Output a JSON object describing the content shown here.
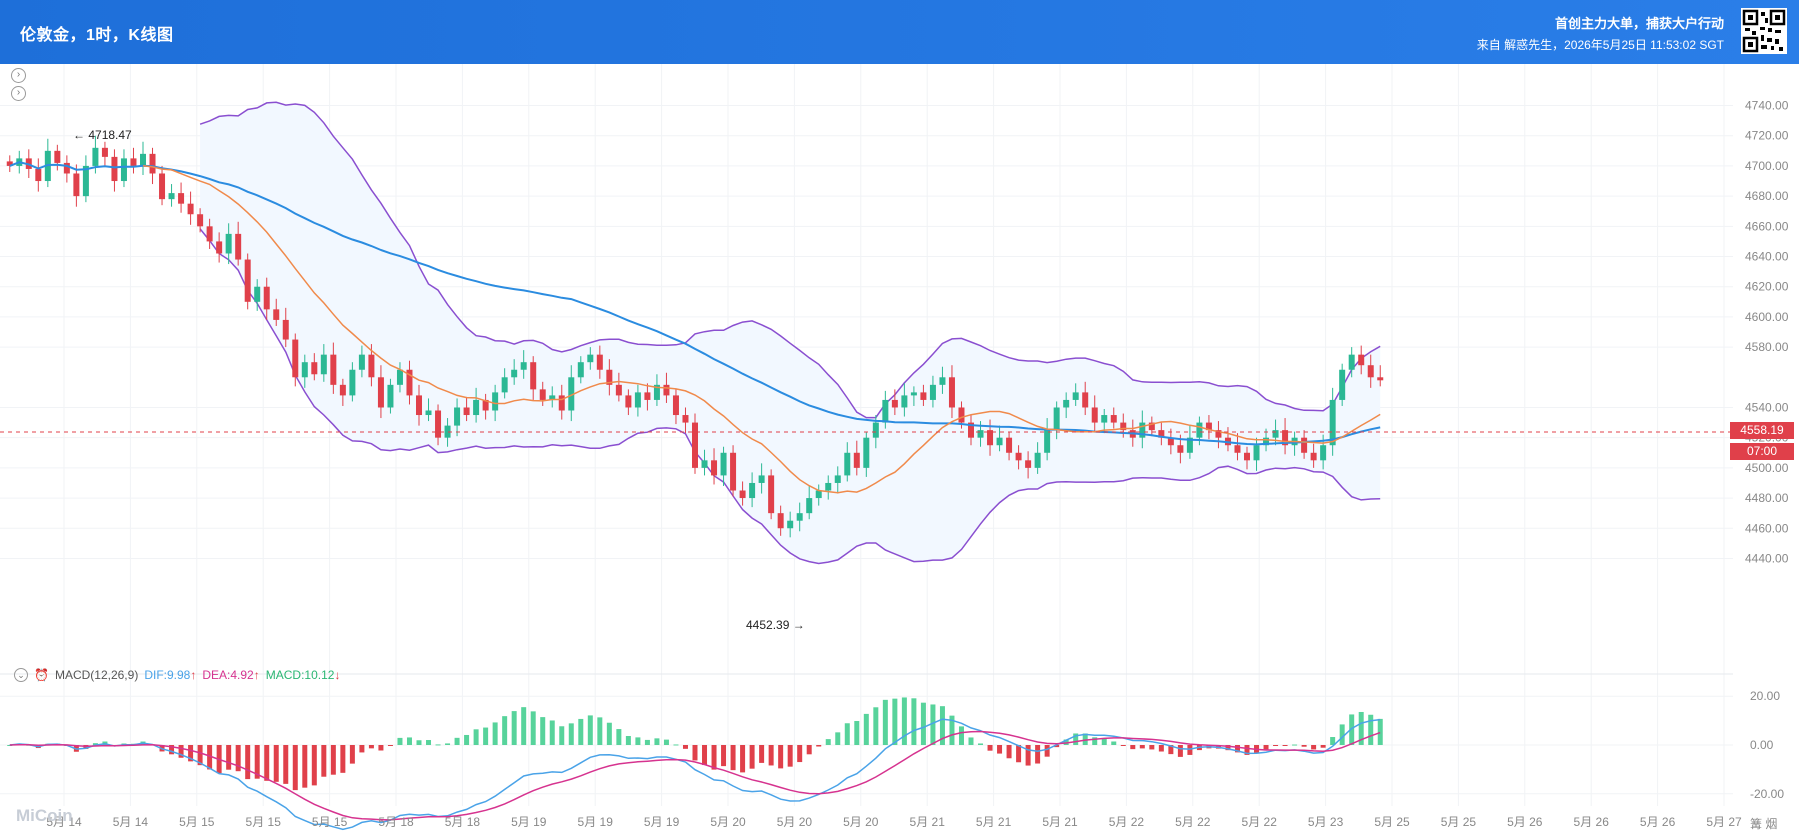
{
  "header": {
    "title": "伦敦金，1时，K线图",
    "slogan": "首创主力大单，捕获大户行动",
    "source": "来自 解惑先生，2026年5月25日 11:53:02 SGT"
  },
  "price_axis": {
    "ticks": [
      "4740.00",
      "4720.00",
      "4700.00",
      "4680.00",
      "4660.00",
      "4640.00",
      "4620.00",
      "4600.00",
      "4580.00",
      "4540.00",
      "4520.00",
      "4500.00",
      "4480.00",
      "4460.00",
      "4440.00"
    ],
    "current_price": "4558.19",
    "countdown": "07:00",
    "high_label": "4718.47",
    "low_label": "4452.39"
  },
  "macd": {
    "label": "MACD(12,26,9)",
    "dif": "DIF:9.98",
    "dea": "DEA:4.92",
    "value": "MACD:10.12",
    "ticks": [
      "20.00",
      "0.00",
      "-20.00"
    ]
  },
  "x_axis": {
    "labels": [
      "5月 14",
      "5月 14",
      "5月 15",
      "5月 15",
      "5月 15",
      "5月 18",
      "5月 18",
      "5月 19",
      "5月 19",
      "5月 19",
      "5月 20",
      "5月 20",
      "5月 20",
      "5月 21",
      "5月 21",
      "5月 21",
      "5月 22",
      "5月 22",
      "5月 22",
      "5月 23",
      "5月 25",
      "5月 25",
      "5月 26",
      "5月 26",
      "5月 26",
      "5月 27"
    ],
    "extra": "篝 烟"
  },
  "watermark": "MiCoin",
  "colors": {
    "up": "#2bb894",
    "down": "#e0404a",
    "ma_orange": "#f08a4b",
    "ma_blue": "#2b8ce0",
    "boll": "#8a4fd0",
    "macd_dif": "#4aa3e8",
    "macd_dea": "#d6338f"
  },
  "chart_data": {
    "type": "candlestick",
    "ylim": [
      4435,
      4745
    ],
    "price_series": [
      4700,
      4705,
      4698,
      4690,
      4710,
      4702,
      4695,
      4680,
      4700,
      4712,
      4706,
      4690,
      4705,
      4700,
      4708,
      4695,
      4678,
      4682,
      4675,
      4668,
      4660,
      4650,
      4642,
      4655,
      4638,
      4610,
      4620,
      4605,
      4598,
      4585,
      4560,
      4570,
      4562,
      4575,
      4555,
      4548,
      4565,
      4575,
      4560,
      4540,
      4555,
      4565,
      4548,
      4535,
      4538,
      4520,
      4528,
      4540,
      4535,
      4545,
      4538,
      4550,
      4560,
      4565,
      4570,
      4552,
      4545,
      4548,
      4538,
      4560,
      4570,
      4575,
      4565,
      4555,
      4548,
      4540,
      4550,
      4545,
      4555,
      4548,
      4535,
      4530,
      4500,
      4505,
      4495,
      4510,
      4485,
      4480,
      4490,
      4495,
      4470,
      4460,
      4465,
      4470,
      4480,
      4485,
      4490,
      4495,
      4510,
      4500,
      4520,
      4530,
      4545,
      4540,
      4548,
      4550,
      4545,
      4555,
      4560,
      4540,
      4530,
      4520,
      4525,
      4515,
      4520,
      4510,
      4505,
      4500,
      4510,
      4525,
      4540,
      4545,
      4550,
      4540,
      4530,
      4535,
      4530,
      4525,
      4520,
      4530,
      4525,
      4520,
      4515,
      4510,
      4520,
      4530,
      4525,
      4520,
      4515,
      4510,
      4505,
      4515,
      4520,
      4525,
      4515,
      4520,
      4510,
      4505,
      4515,
      4545,
      4565,
      4575,
      4568,
      4560,
      4558
    ]
  }
}
